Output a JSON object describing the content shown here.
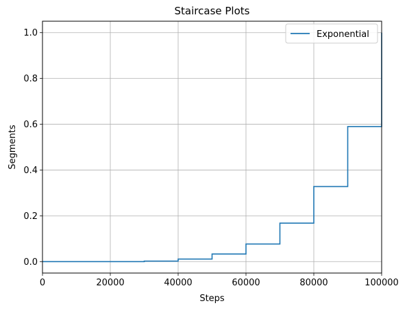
{
  "chart_data": {
    "type": "line",
    "drawstyle": "steps-post",
    "title": "Staircase Plots",
    "xlabel": "Steps",
    "ylabel": "Segments",
    "xlim": [
      0,
      100000
    ],
    "ylim": [
      -0.05,
      1.05
    ],
    "xticks": [
      0,
      20000,
      40000,
      60000,
      80000,
      100000
    ],
    "yticks": [
      0.0,
      0.2,
      0.4,
      0.6,
      0.8,
      1.0
    ],
    "xtick_labels": [
      "0",
      "20000",
      "40000",
      "60000",
      "80000",
      "100000"
    ],
    "ytick_labels": [
      "0.0",
      "0.2",
      "0.4",
      "0.6",
      "0.8",
      "1.0"
    ],
    "grid": true,
    "legend_position": "top-right",
    "series": [
      {
        "name": "Exponential",
        "color": "#1f77b4",
        "x": [
          0,
          10000,
          20000,
          30000,
          40000,
          50000,
          60000,
          70000,
          80000,
          90000,
          100000
        ],
        "values": [
          0.0,
          0.0,
          0.0,
          0.002,
          0.011,
          0.033,
          0.077,
          0.168,
          0.328,
          0.59,
          1.0
        ]
      }
    ]
  }
}
